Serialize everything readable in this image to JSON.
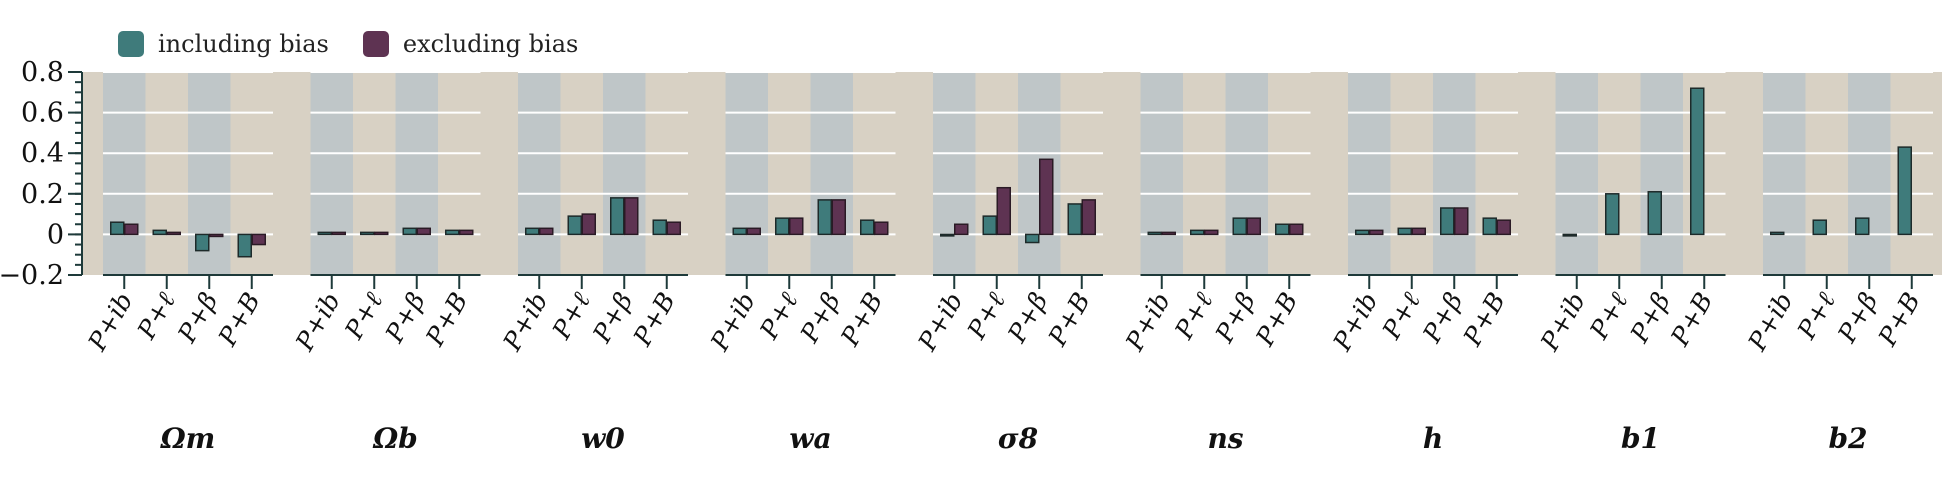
{
  "chart_data": {
    "type": "bar",
    "legend": {
      "placement": "top-left",
      "entries": [
        {
          "name": "including bias",
          "color": "#3f7b7b"
        },
        {
          "name": "excluding bias",
          "color": "#5e3352"
        }
      ]
    },
    "ylim": [
      -0.2,
      0.8
    ],
    "yticks": [
      "0.8",
      "0.6",
      "0.4",
      "0.2",
      "0",
      "−0.2"
    ],
    "ytick_values": [
      0.8,
      0.6,
      0.4,
      0.2,
      0,
      -0.2
    ],
    "panel_categories": [
      "P+ib",
      "P+ℓ",
      "P+β",
      "P+B"
    ],
    "colors": {
      "including": "#3f7b7b",
      "excluding": "#5e3352",
      "panel_gray": "#bfc6c8",
      "panel_tan": "#d8d1c4"
    },
    "panels": [
      {
        "label": "Ωm",
        "including": [
          0.06,
          0.02,
          -0.08,
          -0.11
        ],
        "excluding": [
          0.05,
          0.01,
          -0.01,
          -0.05
        ]
      },
      {
        "label": "Ωb",
        "including": [
          0.01,
          0.01,
          0.03,
          0.02
        ],
        "excluding": [
          0.01,
          0.01,
          0.03,
          0.02
        ]
      },
      {
        "label": "w0",
        "including": [
          0.03,
          0.09,
          0.18,
          0.07
        ],
        "excluding": [
          0.03,
          0.1,
          0.18,
          0.06
        ]
      },
      {
        "label": "wa",
        "including": [
          0.03,
          0.08,
          0.17,
          0.07
        ],
        "excluding": [
          0.03,
          0.08,
          0.17,
          0.06
        ]
      },
      {
        "label": "σ8",
        "including": [
          0.0,
          0.09,
          -0.04,
          0.15
        ],
        "excluding": [
          0.05,
          0.23,
          0.37,
          0.17
        ]
      },
      {
        "label": "ns",
        "including": [
          0.01,
          0.02,
          0.08,
          0.05
        ],
        "excluding": [
          0.01,
          0.02,
          0.08,
          0.05
        ]
      },
      {
        "label": "h",
        "including": [
          0.02,
          0.03,
          0.13,
          0.08
        ],
        "excluding": [
          0.02,
          0.03,
          0.13,
          0.07
        ]
      },
      {
        "label": "b1",
        "including": [
          0.0,
          0.2,
          0.21,
          0.72
        ],
        "excluding": [
          null,
          null,
          null,
          null
        ]
      },
      {
        "label": "b2",
        "including": [
          0.01,
          0.07,
          0.08,
          0.43
        ],
        "excluding": [
          null,
          null,
          null,
          null
        ]
      }
    ]
  }
}
